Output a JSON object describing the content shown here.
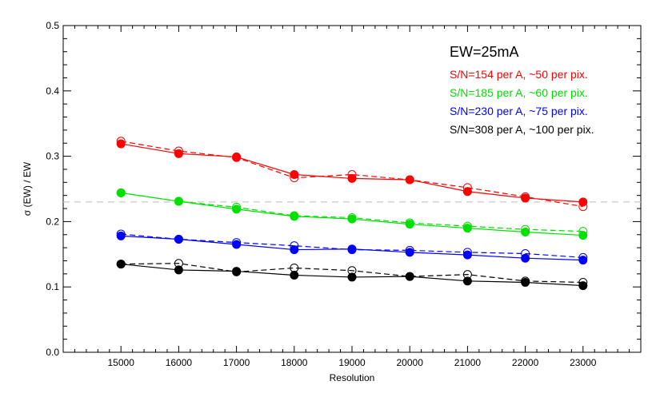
{
  "chart_data": {
    "type": "line",
    "title": "",
    "xlabel": "Resolution",
    "ylabel": "σ (EW) / EW",
    "xlim": [
      14000,
      24000
    ],
    "ylim": [
      0.0,
      0.5
    ],
    "xticks": [
      "15000",
      "16000",
      "17000",
      "18000",
      "19000",
      "20000",
      "21000",
      "22000",
      "23000"
    ],
    "yticks": [
      "0.0",
      "0.1",
      "0.2",
      "0.3",
      "0.4",
      "0.5"
    ],
    "x": [
      15000,
      16000,
      17000,
      18000,
      19000,
      20000,
      21000,
      22000,
      23000
    ],
    "reference_line": {
      "y": 0.23,
      "style": "dashed",
      "color": "#c8c8c8"
    },
    "legend_title": "EW=25mA",
    "legend_position": "top-right",
    "grid": false,
    "series": [
      {
        "name": "S/N=154 per A, ~50 per pix.",
        "color": "#ff0000",
        "values": [
          0.319,
          0.304,
          0.299,
          0.272,
          0.266,
          0.264,
          0.246,
          0.236,
          0.23
        ],
        "open_values": [
          0.323,
          0.308,
          0.298,
          0.267,
          0.272,
          0.264,
          0.252,
          0.238,
          0.223
        ]
      },
      {
        "name": "S/N=185 per A, ~60 per pix.",
        "color": "#00e000",
        "values": [
          0.244,
          0.231,
          0.219,
          0.208,
          0.204,
          0.196,
          0.19,
          0.184,
          0.179
        ],
        "open_values": [
          0.244,
          0.231,
          0.222,
          0.209,
          0.206,
          0.198,
          0.193,
          0.188,
          0.185
        ]
      },
      {
        "name": "S/N=230 per A, ~75 per pix.",
        "color": "#0000ff",
        "values": [
          0.178,
          0.173,
          0.165,
          0.157,
          0.158,
          0.153,
          0.149,
          0.144,
          0.141
        ],
        "open_values": [
          0.181,
          0.173,
          0.168,
          0.163,
          0.157,
          0.156,
          0.153,
          0.151,
          0.145
        ]
      },
      {
        "name": "S/N=308 per A, ~100 per pix.",
        "color": "#000000",
        "values": [
          0.135,
          0.126,
          0.124,
          0.118,
          0.115,
          0.116,
          0.109,
          0.107,
          0.102
        ],
        "open_values": [
          0.135,
          0.136,
          0.123,
          0.129,
          0.125,
          0.116,
          0.119,
          0.109,
          0.107
        ]
      }
    ]
  }
}
